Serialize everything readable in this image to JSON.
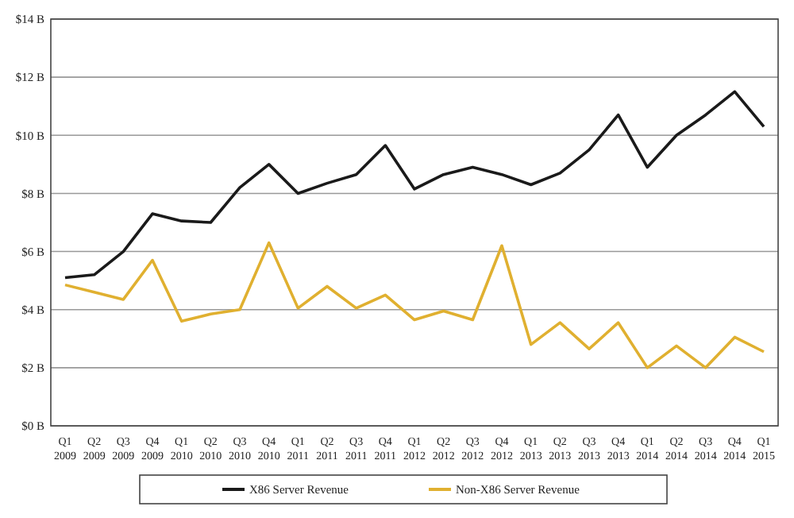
{
  "chart_data": {
    "type": "line",
    "categories": [
      "Q1 2009",
      "Q2 2009",
      "Q3 2009",
      "Q4 2009",
      "Q1 2010",
      "Q2 2010",
      "Q3 2010",
      "Q4 2010",
      "Q1 2011",
      "Q2 2011",
      "Q3 2011",
      "Q4 2011",
      "Q1 2012",
      "Q2 2012",
      "Q3 2012",
      "Q4 2012",
      "Q1 2013",
      "Q2 2013",
      "Q3 2013",
      "Q4 2013",
      "Q1 2014",
      "Q2 2014",
      "Q3 2014",
      "Q4 2014",
      "Q1 2015"
    ],
    "series": [
      {
        "name": "X86 Server Revenue",
        "color": "#1a1a1a",
        "values": [
          5.1,
          5.2,
          6.0,
          7.3,
          7.05,
          7.0,
          8.2,
          9.0,
          8.0,
          8.35,
          8.65,
          9.65,
          8.15,
          8.65,
          8.9,
          8.65,
          8.3,
          8.7,
          9.5,
          10.7,
          8.9,
          10.0,
          10.7,
          11.5,
          10.3
        ]
      },
      {
        "name": "Non-X86 Server Revenue",
        "color": "#e0b030",
        "values": [
          4.85,
          4.6,
          4.35,
          5.7,
          3.6,
          3.85,
          4.0,
          6.3,
          4.05,
          4.8,
          4.05,
          4.5,
          3.65,
          3.95,
          3.65,
          6.2,
          2.8,
          3.55,
          2.65,
          3.55,
          2.0,
          2.75,
          2.0,
          3.05,
          2.55
        ]
      }
    ],
    "ylim": [
      0,
      14
    ],
    "yticks": [
      {
        "value": 0,
        "label": "$0 B"
      },
      {
        "value": 2,
        "label": "$2 B"
      },
      {
        "value": 4,
        "label": "$4 B"
      },
      {
        "value": 6,
        "label": "$6 B"
      },
      {
        "value": 8,
        "label": "$8 B"
      },
      {
        "value": 10,
        "label": "$10 B"
      },
      {
        "value": 12,
        "label": "$12 B"
      },
      {
        "value": 14,
        "label": "$14 B"
      }
    ],
    "grid": "y",
    "legend": "bottom",
    "marker": "none",
    "line_style": "solid"
  }
}
